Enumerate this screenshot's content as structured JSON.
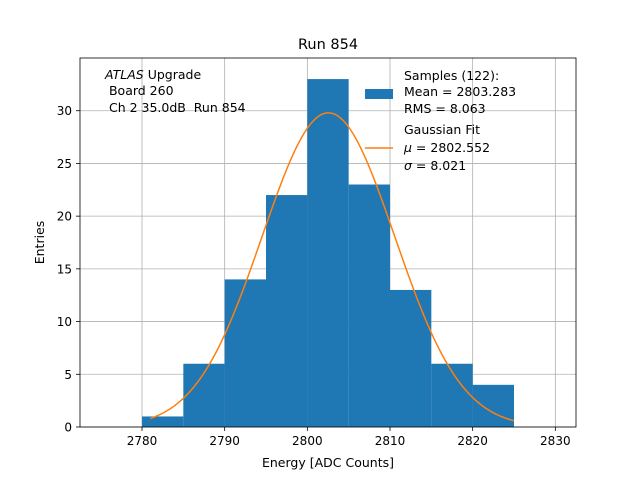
{
  "chart_data": {
    "type": "bar",
    "title": "Run 854",
    "xlabel": "Energy [ADC Counts]",
    "ylabel": "Entries",
    "xlim": [
      2772.5,
      2832.5
    ],
    "ylim": [
      0,
      35
    ],
    "grid": true,
    "x_ticks": [
      2780,
      2790,
      2800,
      2810,
      2820,
      2830
    ],
    "y_ticks": [
      0,
      5,
      10,
      15,
      20,
      25,
      30
    ],
    "histogram": {
      "bin_edges": [
        2780,
        2785,
        2790,
        2795,
        2800,
        2805,
        2810,
        2815,
        2820,
        2825
      ],
      "counts": [
        1,
        6,
        14,
        22,
        33,
        23,
        13,
        6,
        4
      ],
      "color": "#1f77b4"
    },
    "fit": {
      "type": "gaussian",
      "mu": 2802.552,
      "sigma": 8.021,
      "x_range": [
        2781,
        2825
      ],
      "peak": 29.8,
      "color": "#ff7f0e"
    },
    "annotation": {
      "line1_italic": "ATLAS",
      "line1_rest": " Upgrade",
      "line2": " Board 260",
      "line3": " Ch 2 35.0dB  Run 854"
    },
    "legend": {
      "position": "top-right",
      "samples": {
        "line1": "Samples (122):",
        "line2": "Mean = 2803.283",
        "line3": "RMS = 8.063"
      },
      "fit": {
        "line1": "Gaussian Fit",
        "line2_symbol": "μ",
        "line2_rest": " = 2802.552",
        "line3_symbol": "σ",
        "line3_rest": " = 8.021"
      }
    }
  }
}
